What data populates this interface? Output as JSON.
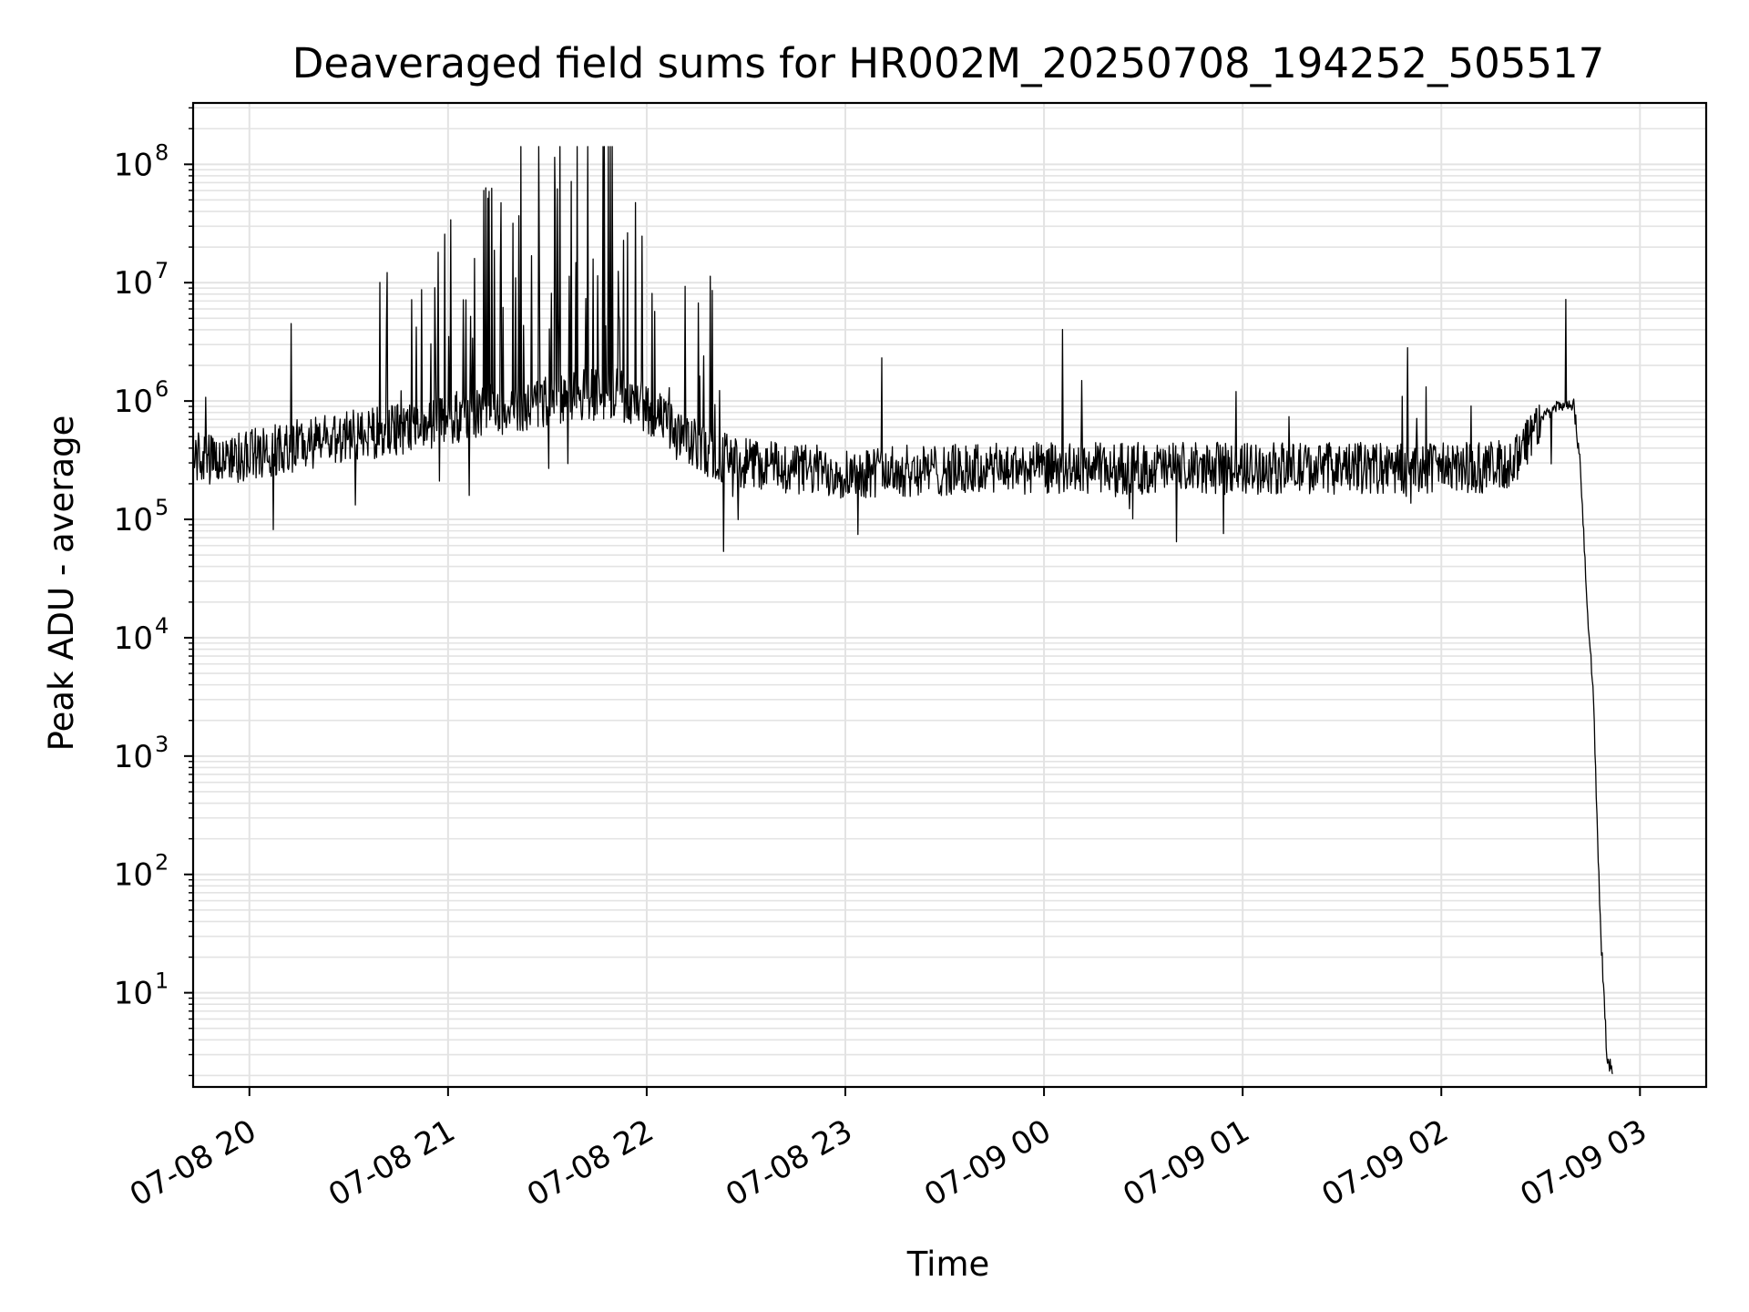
{
  "chart_data": {
    "type": "line",
    "title": "Deaveraged field sums for HR002M_20250708_194252_505517",
    "xlabel": "Time",
    "ylabel": "Peak ADU - average",
    "y_scale": "log",
    "ylim": [
      1.6,
      330000000
    ],
    "xlim": [
      "07-08 19:43",
      "07-09 03:20"
    ],
    "grid": true,
    "x_ticks": [
      "07-08 20",
      "07-08 21",
      "07-08 22",
      "07-08 23",
      "07-09 00",
      "07-09 01",
      "07-09 02",
      "07-09 03"
    ],
    "y_ticks": [
      {
        "base": "10",
        "exp": "1"
      },
      {
        "base": "10",
        "exp": "2"
      },
      {
        "base": "10",
        "exp": "3"
      },
      {
        "base": "10",
        "exp": "4"
      },
      {
        "base": "10",
        "exp": "5"
      },
      {
        "base": "10",
        "exp": "6"
      },
      {
        "base": "10",
        "exp": "7"
      },
      {
        "base": "10",
        "exp": "8"
      }
    ],
    "series": [
      {
        "color": "#000000",
        "x": [
          "07-08 19:43",
          "07-08 19:50",
          "07-08 20:00",
          "07-08 20:10",
          "07-08 20:20",
          "07-08 20:30",
          "07-08 20:40",
          "07-08 20:50",
          "07-08 21:00",
          "07-08 21:10",
          "07-08 21:20",
          "07-08 21:30",
          "07-08 21:40",
          "07-08 21:50",
          "07-08 22:00",
          "07-08 22:10",
          "07-08 22:20",
          "07-08 22:30",
          "07-08 22:40",
          "07-08 22:50",
          "07-08 23:00",
          "07-08 23:30",
          "07-09 00:00",
          "07-09 00:30",
          "07-09 01:00",
          "07-09 01:30",
          "07-09 02:00",
          "07-09 02:20",
          "07-09 02:30",
          "07-09 02:35",
          "07-09 02:40",
          "07-09 02:42",
          "07-09 02:44",
          "07-09 02:46",
          "07-09 02:47",
          "07-09 02:48",
          "07-09 02:50",
          "07-09 02:52"
        ],
        "y": [
          350000,
          300000,
          350000,
          400000,
          450000,
          500000,
          550000,
          600000,
          700000,
          800000,
          900000,
          1000000,
          1100000,
          1200000,
          900000,
          500000,
          350000,
          300000,
          280000,
          260000,
          250000,
          260000,
          270000,
          270000,
          270000,
          270000,
          270000,
          280000,
          700000,
          900000,
          900000,
          300000,
          20000,
          3000,
          300,
          40,
          3,
          2
        ]
      }
    ]
  }
}
